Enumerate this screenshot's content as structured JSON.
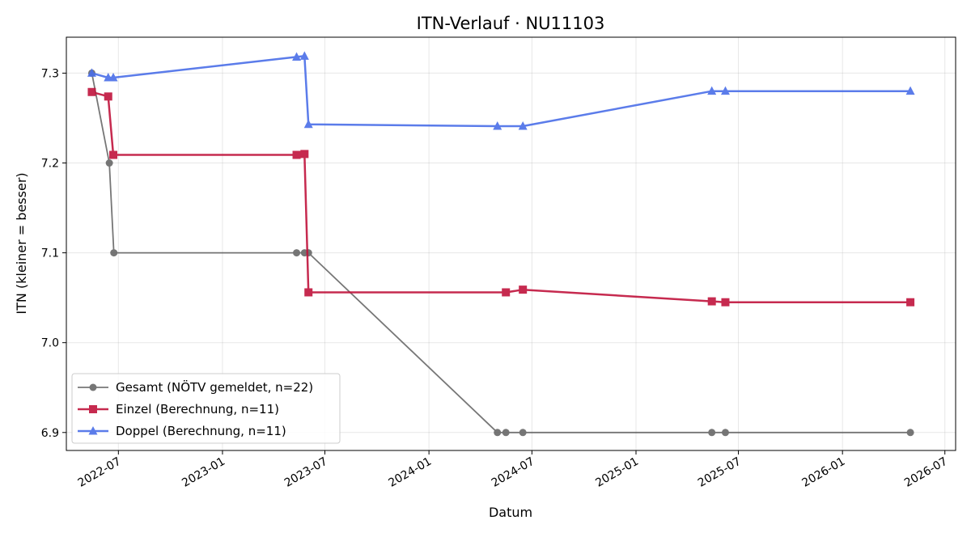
{
  "chart_data": {
    "type": "line",
    "title": "ITN-Verlauf · NU11103",
    "xlabel": "Datum",
    "ylabel": "ITN  (kleiner = besser)",
    "xlim": [
      "2022-03-31",
      "2026-07-20"
    ],
    "ylim": [
      6.88,
      7.34
    ],
    "grid": true,
    "legend_position": "lower-left",
    "x_ticks": [
      "2022-07",
      "2023-01",
      "2023-07",
      "2024-01",
      "2024-07",
      "2025-01",
      "2025-07",
      "2026-01",
      "2026-07"
    ],
    "y_ticks": [
      "6.9",
      "7.0",
      "7.1",
      "7.2",
      "7.3"
    ],
    "series": [
      {
        "name": "Gesamt (NÖTV gemeldet, n=22)",
        "color": "#555555",
        "marker": "circle",
        "points": [
          [
            "2022-05-15",
            7.3
          ],
          [
            "2022-06-15",
            7.2
          ],
          [
            "2022-06-23",
            7.1
          ],
          [
            "2023-05-12",
            7.1
          ],
          [
            "2023-05-26",
            7.1
          ],
          [
            "2023-06-02",
            7.1
          ],
          [
            "2024-05-01",
            6.9
          ],
          [
            "2024-05-16",
            6.9
          ],
          [
            "2024-06-15",
            6.9
          ],
          [
            "2025-05-15",
            6.9
          ],
          [
            "2025-06-08",
            6.9
          ],
          [
            "2026-05-01",
            6.9
          ]
        ]
      },
      {
        "name": "Einzel (Berechnung, n=11)",
        "color": "#c0143c",
        "marker": "square",
        "points": [
          [
            "2022-05-15",
            7.279
          ],
          [
            "2022-06-13",
            7.274
          ],
          [
            "2022-06-22",
            7.209
          ],
          [
            "2023-05-12",
            7.209
          ],
          [
            "2023-05-26",
            7.21
          ],
          [
            "2023-06-02",
            7.056
          ],
          [
            "2024-05-16",
            7.056
          ],
          [
            "2024-06-15",
            7.059
          ],
          [
            "2025-05-15",
            7.046
          ],
          [
            "2025-06-08",
            7.045
          ],
          [
            "2026-05-01",
            7.045
          ]
        ]
      },
      {
        "name": "Doppel (Berechnung, n=11)",
        "color": "#4a6ee8",
        "marker": "triangle",
        "points": [
          [
            "2022-05-15",
            7.3
          ],
          [
            "2022-06-13",
            7.295
          ],
          [
            "2022-06-22",
            7.295
          ],
          [
            "2023-05-12",
            7.318
          ],
          [
            "2023-05-26",
            7.319
          ],
          [
            "2023-06-02",
            7.243
          ],
          [
            "2024-05-01",
            7.241
          ],
          [
            "2024-06-15",
            7.241
          ],
          [
            "2025-05-15",
            7.28
          ],
          [
            "2025-06-08",
            7.28
          ],
          [
            "2026-05-01",
            7.28
          ]
        ]
      }
    ]
  }
}
